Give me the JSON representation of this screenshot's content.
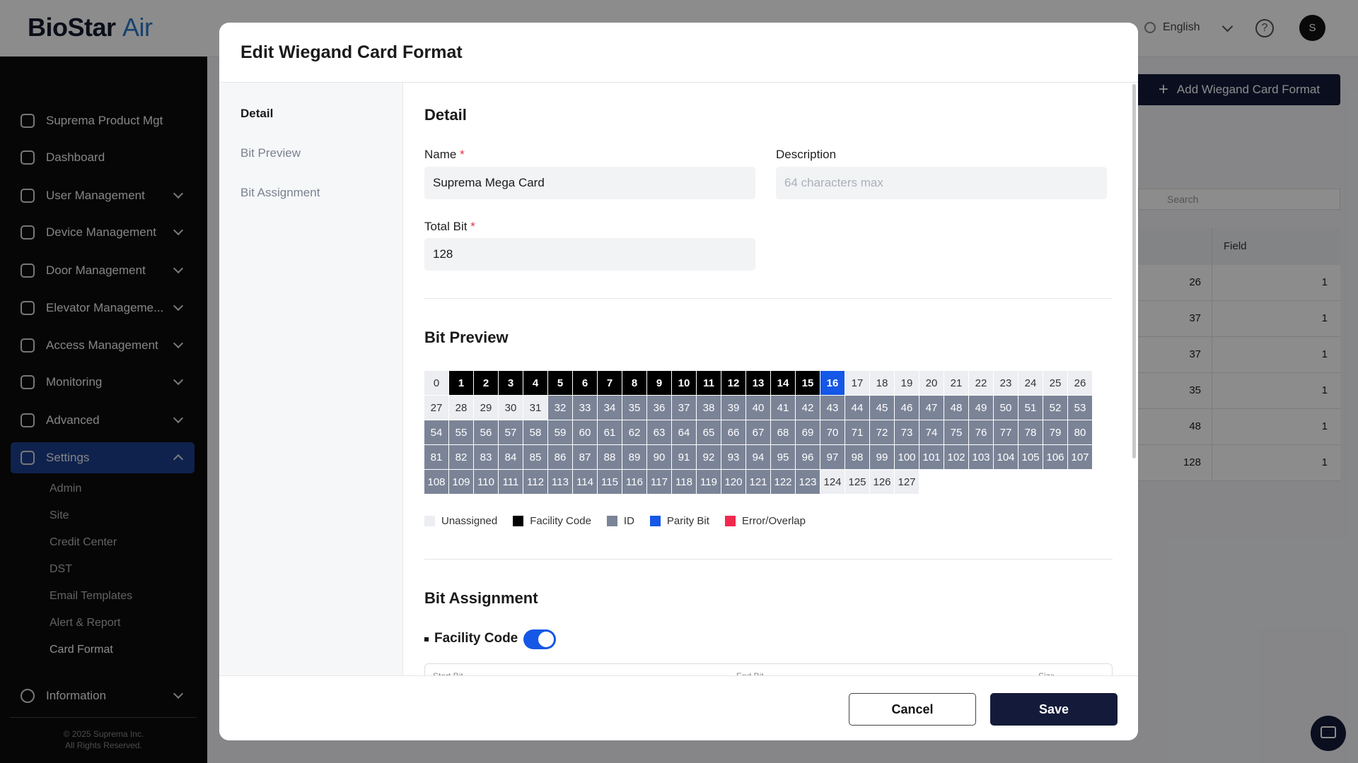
{
  "app": {
    "brand": "BioStar",
    "brand_accent": "Air",
    "language": "English",
    "avatar": "S"
  },
  "sidebar": {
    "items": [
      {
        "label": "Suprema Product Mgt",
        "expandable": false
      },
      {
        "label": "Dashboard",
        "expandable": false
      },
      {
        "label": "User Management",
        "expandable": true
      },
      {
        "label": "Device Management",
        "expandable": true
      },
      {
        "label": "Door Management",
        "expandable": true
      },
      {
        "label": "Elevator Manageme...",
        "expandable": true
      },
      {
        "label": "Access Management",
        "expandable": true
      },
      {
        "label": "Monitoring",
        "expandable": true
      },
      {
        "label": "Advanced",
        "expandable": true
      },
      {
        "label": "Settings",
        "expandable": true,
        "active": true
      }
    ],
    "settings_sub": [
      "Admin",
      "Site",
      "Credit Center",
      "DST",
      "Email Templates",
      "Alert & Report",
      "Card Format"
    ],
    "current_sub": 6,
    "information": "Information",
    "copyright": [
      "© 2025 Suprema Inc.",
      "All Rights Reserved."
    ]
  },
  "page": {
    "add_button": "Add Wiegand Card Format",
    "search_placeholder": "Search",
    "table_header": "Field",
    "rows": [
      [
        26,
        1
      ],
      [
        37,
        1
      ],
      [
        37,
        1
      ],
      [
        35,
        1
      ],
      [
        48,
        1
      ],
      [
        128,
        1
      ]
    ]
  },
  "modal": {
    "title": "Edit Wiegand Card Format",
    "tabs": [
      "Detail",
      "Bit Preview",
      "Bit Assignment"
    ],
    "active_tab": 0,
    "detail": {
      "heading": "Detail",
      "name_label": "Name",
      "required": "*",
      "name_value": "Suprema Mega Card",
      "description_label": "Description",
      "description_placeholder": "64 characters max",
      "total_bit_label": "Total Bit",
      "total_bit_value": 128
    },
    "bit_preview": {
      "heading": "Bit Preview",
      "bits": [
        0,
        1,
        2,
        3,
        4,
        5,
        6,
        7,
        8,
        9,
        10,
        11,
        12,
        13,
        14,
        15,
        16,
        17,
        18,
        19,
        20,
        21,
        22,
        23,
        24,
        25,
        26,
        27,
        28,
        29,
        30,
        31,
        32,
        33,
        34,
        35,
        36,
        37,
        38,
        39,
        40,
        41,
        42,
        43,
        44,
        45,
        46,
        47,
        48,
        49,
        50,
        51,
        52,
        53,
        54,
        55,
        56,
        57,
        58,
        59,
        60,
        61,
        62,
        63,
        64,
        65,
        66,
        67,
        68,
        69,
        70,
        71,
        72,
        73,
        74,
        75,
        76,
        77,
        78,
        79,
        80,
        81,
        82,
        83,
        84,
        85,
        86,
        87,
        88,
        89,
        90,
        91,
        92,
        93,
        94,
        95,
        96,
        97,
        98,
        99,
        100,
        101,
        102,
        103,
        104,
        105,
        106,
        107,
        108,
        109,
        110,
        111,
        112,
        113,
        114,
        115,
        116,
        117,
        118,
        119,
        120,
        121,
        122,
        123,
        124,
        125,
        126,
        127
      ],
      "bit_types": [
        "u",
        "f",
        "f",
        "f",
        "f",
        "f",
        "f",
        "f",
        "f",
        "f",
        "f",
        "f",
        "f",
        "f",
        "f",
        "f",
        "p",
        "u",
        "u",
        "u",
        "u",
        "u",
        "u",
        "u",
        "u",
        "u",
        "u",
        "u",
        "u",
        "u",
        "u",
        "u",
        "i",
        "i",
        "i",
        "i",
        "i",
        "i",
        "i",
        "i",
        "i",
        "i",
        "i",
        "i",
        "i",
        "i",
        "i",
        "i",
        "i",
        "i",
        "i",
        "i",
        "i",
        "i",
        "i",
        "i",
        "i",
        "i",
        "i",
        "i",
        "i",
        "i",
        "i",
        "i",
        "i",
        "i",
        "i",
        "i",
        "i",
        "i",
        "i",
        "i",
        "i",
        "i",
        "i",
        "i",
        "i",
        "i",
        "i",
        "i",
        "i",
        "i",
        "i",
        "i",
        "i",
        "i",
        "i",
        "i",
        "i",
        "i",
        "i",
        "i",
        "i",
        "i",
        "i",
        "i",
        "i",
        "i",
        "i",
        "i",
        "i",
        "i",
        "i",
        "i",
        "i",
        "i",
        "i",
        "i",
        "i",
        "i",
        "i",
        "i",
        "i",
        "i",
        "i",
        "i",
        "i",
        "i",
        "i",
        "i",
        "i",
        "i",
        "i",
        "i"
      ],
      "legend": [
        {
          "key": "u",
          "label": "Unassigned",
          "color": "#eceef2",
          "text_color": "#333333"
        },
        {
          "key": "f",
          "label": "Facility Code",
          "color": "#000000",
          "text_color": "#ffffff"
        },
        {
          "key": "i",
          "label": "ID",
          "color": "#7b8497",
          "text_color": "#ffffff"
        },
        {
          "key": "p",
          "label": "Parity Bit",
          "color": "#1557e6",
          "text_color": "#ffffff"
        },
        {
          "key": "e",
          "label": "Error/Overlap",
          "color": "#f0294f",
          "text_color": "#ffffff"
        }
      ]
    },
    "bit_assignment": {
      "heading": "Bit Assignment",
      "section": "Facility Code",
      "enabled": true,
      "columns": [
        "Start Bit",
        "End Bit",
        "Size"
      ]
    },
    "cancel": "Cancel",
    "save": "Save"
  }
}
